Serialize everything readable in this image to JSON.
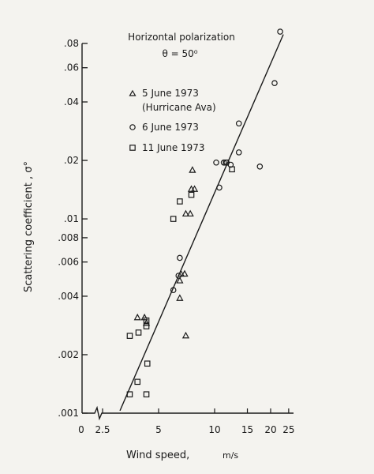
{
  "chart_data": {
    "type": "scatter",
    "title_line1": "Horizontal polarization",
    "title_line2": "θ = 50⁰",
    "xlabel": "Wind speed,",
    "xunit": "m/s",
    "ylabel": "Scattering coefficient , σ°",
    "x_scale": "log",
    "y_scale": "log",
    "xlim": [
      2.5,
      25
    ],
    "ylim": [
      0.001,
      0.08
    ],
    "x_ticks": [
      {
        "value": 2.5,
        "label": "2.5"
      },
      {
        "value": 5,
        "label": "5"
      },
      {
        "value": 10,
        "label": "10"
      },
      {
        "value": 15,
        "label": "15"
      },
      {
        "value": 20,
        "label": "20"
      },
      {
        "value": 25,
        "label": "25"
      }
    ],
    "x_zero_label": "0",
    "y_ticks": [
      {
        "value": 0.001,
        "label": ".001"
      },
      {
        "value": 0.002,
        "label": ".002"
      },
      {
        "value": 0.004,
        "label": ".004"
      },
      {
        "value": 0.006,
        "label": ".006"
      },
      {
        "value": 0.008,
        "label": ".008"
      },
      {
        "value": 0.01,
        "label": ".01"
      },
      {
        "value": 0.02,
        "label": ".02"
      },
      {
        "value": 0.04,
        "label": ".04"
      },
      {
        "value": 0.06,
        "label": ".06"
      },
      {
        "value": 0.08,
        "label": ".08"
      }
    ],
    "legend_placement": "top-left",
    "series": [
      {
        "name": "5 June 1973",
        "name_line2": "(Hurricane Ava)",
        "marker": "triangle",
        "points": [
          [
            3.85,
            0.0031
          ],
          [
            4.2,
            0.0031
          ],
          [
            4.3,
            0.0029
          ],
          [
            6.5,
            0.0048
          ],
          [
            6.6,
            0.0052
          ],
          [
            6.9,
            0.0052
          ],
          [
            6.5,
            0.0039
          ],
          [
            7.0,
            0.0025
          ],
          [
            7.0,
            0.0106
          ],
          [
            7.4,
            0.0106
          ],
          [
            7.5,
            0.0142
          ],
          [
            7.8,
            0.0142
          ],
          [
            7.6,
            0.0178
          ]
        ]
      },
      {
        "name": "6 June 1973",
        "marker": "circle",
        "points": [
          [
            22.5,
            0.092
          ],
          [
            21.0,
            0.05
          ],
          [
            13.5,
            0.031
          ],
          [
            13.5,
            0.022
          ],
          [
            10.2,
            0.0195
          ],
          [
            11.2,
            0.0195
          ],
          [
            11.6,
            0.0195
          ],
          [
            12.2,
            0.019
          ],
          [
            17.5,
            0.0186
          ],
          [
            10.6,
            0.0145
          ],
          [
            6.5,
            0.0063
          ],
          [
            6.4,
            0.0051
          ],
          [
            6.0,
            0.0043
          ]
        ]
      },
      {
        "name": "11 June 1973",
        "marker": "square",
        "points": [
          [
            3.5,
            0.00125
          ],
          [
            3.85,
            0.00145
          ],
          [
            4.3,
            0.00125
          ],
          [
            4.35,
            0.0018
          ],
          [
            3.5,
            0.0025
          ],
          [
            3.9,
            0.0026
          ],
          [
            4.3,
            0.003
          ],
          [
            4.3,
            0.0028
          ],
          [
            6.0,
            0.01
          ],
          [
            6.5,
            0.0123
          ],
          [
            7.5,
            0.0133
          ],
          [
            11.5,
            0.0195
          ],
          [
            12.4,
            0.018
          ]
        ]
      }
    ],
    "fit_line": {
      "x": [
        3.1,
        23.4
      ],
      "y": [
        0.00103,
        0.089
      ]
    }
  }
}
